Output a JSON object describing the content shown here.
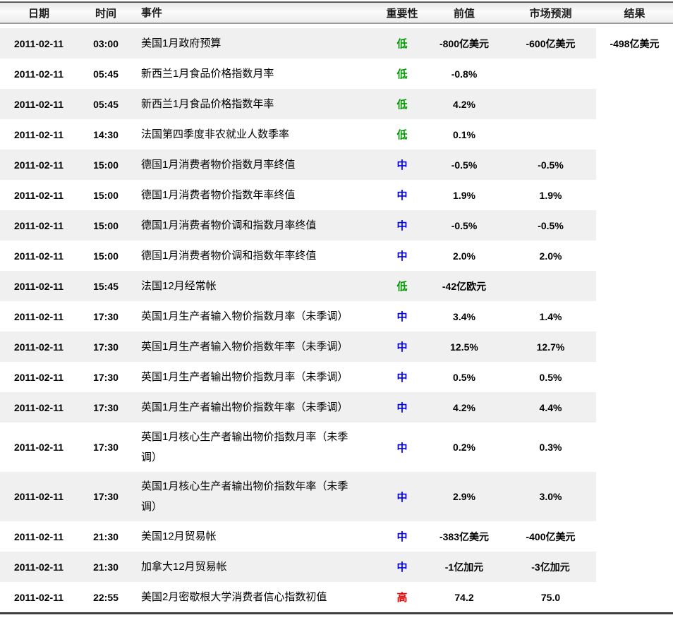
{
  "header": {
    "date": "日期",
    "time": "时间",
    "event": "事件",
    "importance": "重要性",
    "previous": "前值",
    "forecast": "市场预测",
    "result": "结果"
  },
  "importance_colors": {
    "低": "#009900",
    "中": "#0000ee",
    "高": "#ee0000"
  },
  "rows": [
    {
      "date": "2011-02-11",
      "time": "03:00",
      "event": "美国1月政府预算",
      "importance": "低",
      "previous": "-800亿美元",
      "forecast": "-600亿美元",
      "result": "-498亿美元"
    },
    {
      "date": "2011-02-11",
      "time": "05:45",
      "event": "新西兰1月食品价格指数月率",
      "importance": "低",
      "previous": "-0.8%",
      "forecast": "",
      "result": ""
    },
    {
      "date": "2011-02-11",
      "time": "05:45",
      "event": "新西兰1月食品价格指数年率",
      "importance": "低",
      "previous": "4.2%",
      "forecast": "",
      "result": ""
    },
    {
      "date": "2011-02-11",
      "time": "14:30",
      "event": "法国第四季度非农就业人数季率",
      "importance": "低",
      "previous": "0.1%",
      "forecast": "",
      "result": ""
    },
    {
      "date": "2011-02-11",
      "time": "15:00",
      "event": "德国1月消费者物价指数月率终值",
      "importance": "中",
      "previous": "-0.5%",
      "forecast": "-0.5%",
      "result": ""
    },
    {
      "date": "2011-02-11",
      "time": "15:00",
      "event": "德国1月消费者物价指数年率终值",
      "importance": "中",
      "previous": "1.9%",
      "forecast": "1.9%",
      "result": ""
    },
    {
      "date": "2011-02-11",
      "time": "15:00",
      "event": "德国1月消费者物价调和指数月率终值",
      "importance": "中",
      "previous": "-0.5%",
      "forecast": "-0.5%",
      "result": ""
    },
    {
      "date": "2011-02-11",
      "time": "15:00",
      "event": "德国1月消费者物价调和指数年率终值",
      "importance": "中",
      "previous": "2.0%",
      "forecast": "2.0%",
      "result": ""
    },
    {
      "date": "2011-02-11",
      "time": "15:45",
      "event": "法国12月经常帐",
      "importance": "低",
      "previous": "-42亿欧元",
      "forecast": "",
      "result": ""
    },
    {
      "date": "2011-02-11",
      "time": "17:30",
      "event": "英国1月生产者输入物价指数月率（未季调）",
      "importance": "中",
      "previous": "3.4%",
      "forecast": "1.4%",
      "result": ""
    },
    {
      "date": "2011-02-11",
      "time": "17:30",
      "event": "英国1月生产者输入物价指数年率（未季调）",
      "importance": "中",
      "previous": "12.5%",
      "forecast": "12.7%",
      "result": ""
    },
    {
      "date": "2011-02-11",
      "time": "17:30",
      "event": "英国1月生产者输出物价指数月率（未季调）",
      "importance": "中",
      "previous": "0.5%",
      "forecast": "0.5%",
      "result": ""
    },
    {
      "date": "2011-02-11",
      "time": "17:30",
      "event": "英国1月生产者输出物价指数年率（未季调）",
      "importance": "中",
      "previous": "4.2%",
      "forecast": "4.4%",
      "result": ""
    },
    {
      "date": "2011-02-11",
      "time": "17:30",
      "event": "英国1月核心生产者输出物价指数月率（未季\n调）",
      "importance": "中",
      "previous": "0.2%",
      "forecast": "0.3%",
      "result": ""
    },
    {
      "date": "2011-02-11",
      "time": "17:30",
      "event": "英国1月核心生产者输出物价指数年率（未季\n调）",
      "importance": "中",
      "previous": "2.9%",
      "forecast": "3.0%",
      "result": ""
    },
    {
      "date": "2011-02-11",
      "time": "21:30",
      "event": "美国12月贸易帐",
      "importance": "中",
      "previous": "-383亿美元",
      "forecast": "-400亿美元",
      "result": ""
    },
    {
      "date": "2011-02-11",
      "time": "21:30",
      "event": "加拿大12月贸易帐",
      "importance": "中",
      "previous": "-1亿加元",
      "forecast": "-3亿加元",
      "result": ""
    },
    {
      "date": "2011-02-11",
      "time": "22:55",
      "event": "美国2月密歇根大学消费者信心指数初值",
      "importance": "高",
      "previous": "74.2",
      "forecast": "75.0",
      "result": ""
    }
  ]
}
